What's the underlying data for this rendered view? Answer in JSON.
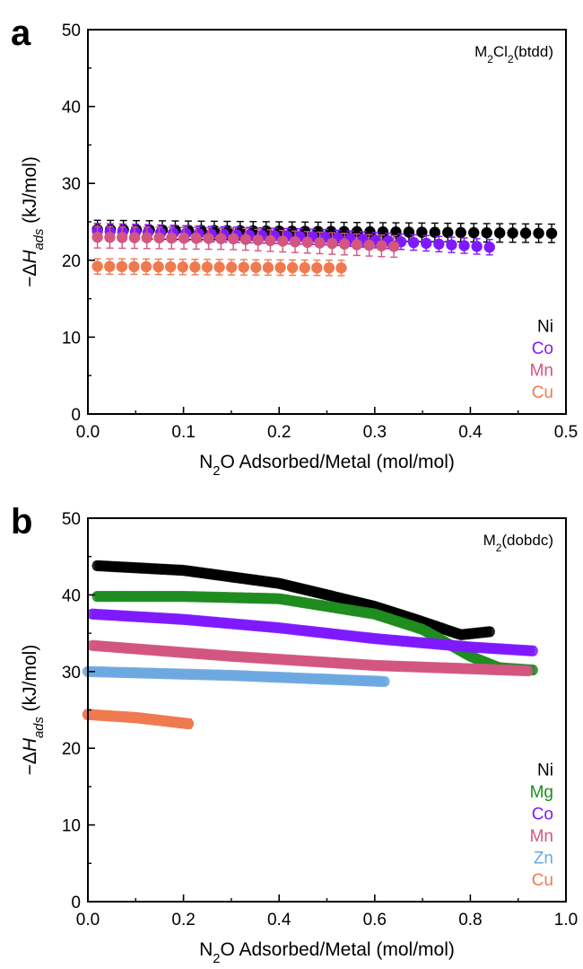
{
  "figure": {
    "panels": [
      {
        "letter": "a",
        "sample_name": "M₂Cl₂(btdd)"
      },
      {
        "letter": "b",
        "sample_name": "M₂(dobdc)"
      }
    ]
  },
  "chart_data": [
    {
      "type": "scatter",
      "panel": "a",
      "annotation": "M₂Cl₂(btdd)",
      "xlabel": "N₂O Adsorbed/Metal (mol/mol)",
      "ylabel": "−ΔH_ads (kJ/mol)",
      "xlim": [
        0,
        0.5
      ],
      "ylim": [
        0,
        50
      ],
      "xticks": [
        0.0,
        0.1,
        0.2,
        0.3,
        0.4,
        0.5
      ],
      "xtick_labels": [
        "0.0",
        "0.1",
        "0.2",
        "0.3",
        "0.4",
        "0.5"
      ],
      "yticks": [
        0,
        10,
        20,
        30,
        40,
        50
      ],
      "ytick_labels": [
        "0",
        "10",
        "20",
        "30",
        "40",
        "50"
      ],
      "error_bars": true,
      "legend_position": "bottom-right",
      "series": [
        {
          "name": "Ni",
          "color": "#000000",
          "x_start": 0.01,
          "x_end": 0.485,
          "n": 36,
          "y_points": [
            [
              0.01,
              24.0
            ],
            [
              0.485,
              23.5
            ]
          ],
          "err": 1.2
        },
        {
          "name": "Co",
          "color": "#7f1aff",
          "x_start": 0.01,
          "x_end": 0.42,
          "n": 32,
          "y_points": [
            [
              0.01,
              23.8
            ],
            [
              0.25,
              23.0
            ],
            [
              0.42,
              21.7
            ]
          ],
          "err": 1.0
        },
        {
          "name": "Mn",
          "color": "#d2567f",
          "x_start": 0.01,
          "x_end": 0.32,
          "n": 25,
          "y_points": [
            [
              0.01,
              23.0
            ],
            [
              0.15,
              22.8
            ],
            [
              0.32,
              21.8
            ]
          ],
          "err": 1.4
        },
        {
          "name": "Cu",
          "color": "#f07a50",
          "x_start": 0.01,
          "x_end": 0.265,
          "n": 21,
          "y_points": [
            [
              0.01,
              19.2
            ],
            [
              0.265,
              19.0
            ]
          ],
          "err": 1.0
        }
      ]
    },
    {
      "type": "scatter",
      "panel": "b",
      "annotation": "M₂(dobdc)",
      "xlabel": "N₂O Adsorbed/Metal (mol/mol)",
      "ylabel": "−ΔH_ads (kJ/mol)",
      "xlim": [
        0,
        1.0
      ],
      "ylim": [
        0,
        50
      ],
      "xticks": [
        0.0,
        0.2,
        0.4,
        0.6,
        0.8,
        1.0
      ],
      "xtick_labels": [
        "0.0",
        "0.2",
        "0.4",
        "0.6",
        "0.8",
        "1.0"
      ],
      "yticks": [
        0,
        10,
        20,
        30,
        40,
        50
      ],
      "ytick_labels": [
        "0",
        "10",
        "20",
        "30",
        "40",
        "50"
      ],
      "error_bars": true,
      "legend_position": "bottom-right",
      "series": [
        {
          "name": "Ni",
          "color": "#000000",
          "x_start": 0.02,
          "x_end": 0.84,
          "n": 140,
          "y_points": [
            [
              0.02,
              43.8
            ],
            [
              0.2,
              43.2
            ],
            [
              0.4,
              41.5
            ],
            [
              0.6,
              38.5
            ],
            [
              0.7,
              36.5
            ],
            [
              0.78,
              34.8
            ],
            [
              0.84,
              35.2
            ]
          ],
          "err": 0.5
        },
        {
          "name": "Mg",
          "color": "#1e8c1e",
          "x_start": 0.02,
          "x_end": 0.93,
          "n": 150,
          "y_points": [
            [
              0.02,
              39.8
            ],
            [
              0.2,
              39.8
            ],
            [
              0.4,
              39.5
            ],
            [
              0.6,
              37.5
            ],
            [
              0.7,
              35.5
            ],
            [
              0.8,
              32.0
            ],
            [
              0.86,
              30.5
            ],
            [
              0.93,
              30.2
            ]
          ],
          "err": 0.5
        },
        {
          "name": "Co",
          "color": "#7f1aff",
          "x_start": 0.01,
          "x_end": 0.93,
          "n": 150,
          "y_points": [
            [
              0.01,
              37.5
            ],
            [
              0.2,
              36.8
            ],
            [
              0.4,
              35.7
            ],
            [
              0.6,
              34.3
            ],
            [
              0.8,
              33.2
            ],
            [
              0.93,
              32.7
            ]
          ],
          "err": 0.5
        },
        {
          "name": "Mn",
          "color": "#d2567f",
          "x_start": 0.01,
          "x_end": 0.92,
          "n": 150,
          "y_points": [
            [
              0.01,
              33.4
            ],
            [
              0.3,
              32.0
            ],
            [
              0.6,
              30.8
            ],
            [
              0.92,
              30.1
            ]
          ],
          "err": 0.5
        },
        {
          "name": "Zn",
          "color": "#6fa8e0",
          "x_start": 0.0,
          "x_end": 0.62,
          "n": 100,
          "y_points": [
            [
              0.0,
              30.0
            ],
            [
              0.3,
              29.5
            ],
            [
              0.62,
              28.7
            ]
          ],
          "err": 0.4
        },
        {
          "name": "Cu",
          "color": "#f07a50",
          "x_start": 0.0,
          "x_end": 0.21,
          "n": 40,
          "y_points": [
            [
              0.0,
              24.4
            ],
            [
              0.1,
              24.0
            ],
            [
              0.21,
              23.2
            ]
          ],
          "err": 0.6
        }
      ]
    }
  ]
}
